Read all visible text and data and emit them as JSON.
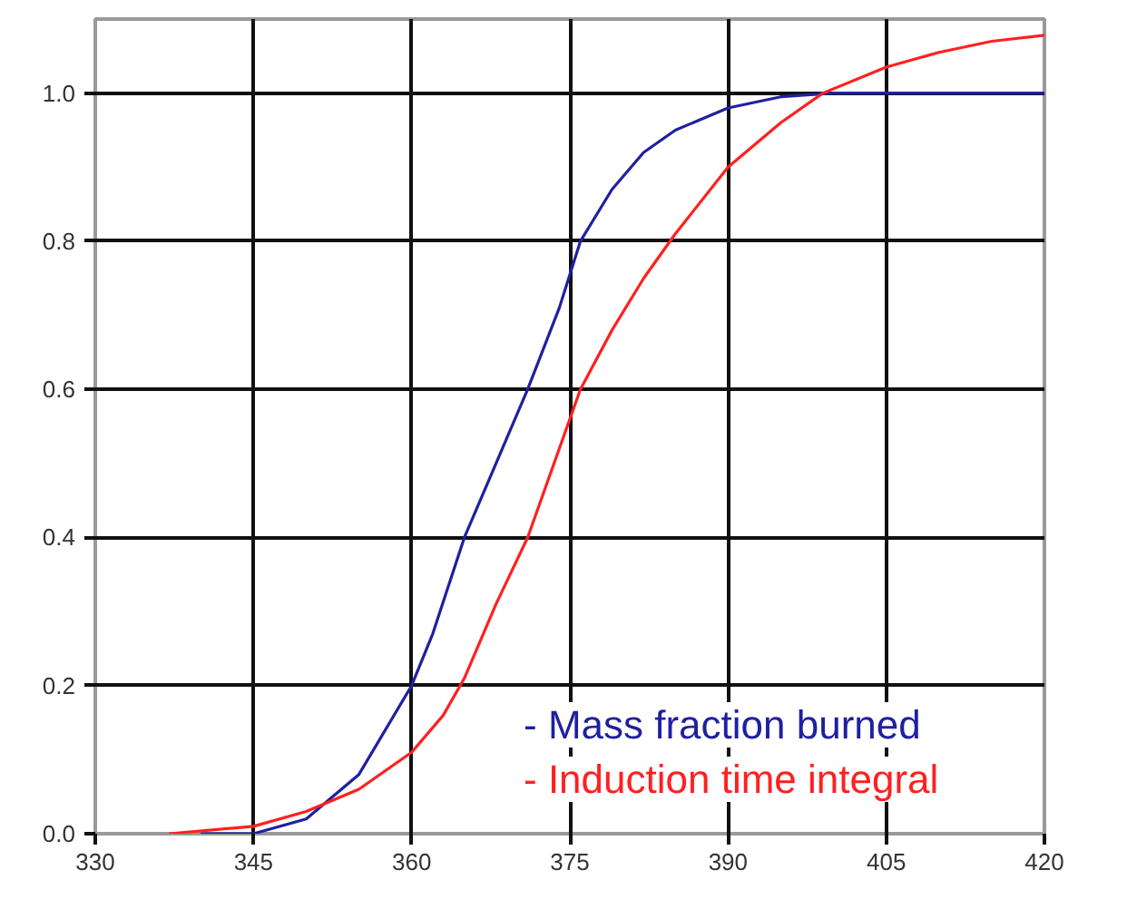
{
  "chart_data": {
    "type": "line",
    "xlim": [
      330,
      420
    ],
    "xticks": [
      330,
      345,
      360,
      375,
      390,
      405,
      420
    ],
    "ylim": [
      0,
      1.1
    ],
    "yticks": [
      {
        "value": 0,
        "label": "0.0"
      },
      {
        "value": 0.2,
        "label": "0.2"
      },
      {
        "value": 0.4,
        "label": "0.4"
      },
      {
        "value": 0.6,
        "label": "0.6"
      },
      {
        "value": 0.8,
        "label": "0.8"
      },
      {
        "value": 1.0,
        "label": "1.0"
      }
    ],
    "grid": true,
    "legend": "bottom right",
    "marker": "none",
    "line_style": "solid",
    "series": [
      {
        "name": "- Mass fraction burned",
        "color": "#2020a0",
        "x": [
          340,
          345,
          350,
          355,
          360,
          362,
          365,
          368,
          371,
          374,
          376,
          379,
          382,
          385,
          390,
          395,
          400,
          420
        ],
        "values": [
          0,
          0,
          0.02,
          0.08,
          0.2,
          0.27,
          0.4,
          0.5,
          0.6,
          0.71,
          0.8,
          0.87,
          0.92,
          0.95,
          0.98,
          0.995,
          1.0,
          1.0
        ]
      },
      {
        "name": "- Induction time integral",
        "color": "#ff2020",
        "x": [
          337,
          345,
          350,
          355,
          360,
          363,
          365,
          368,
          371,
          374,
          376,
          379,
          382,
          385,
          390,
          395,
          399,
          405,
          410,
          415,
          420
        ],
        "values": [
          0,
          0.01,
          0.03,
          0.06,
          0.11,
          0.16,
          0.21,
          0.31,
          0.4,
          0.52,
          0.6,
          0.68,
          0.75,
          0.81,
          0.9,
          0.96,
          1.0,
          1.035,
          1.055,
          1.07,
          1.078
        ]
      }
    ]
  }
}
